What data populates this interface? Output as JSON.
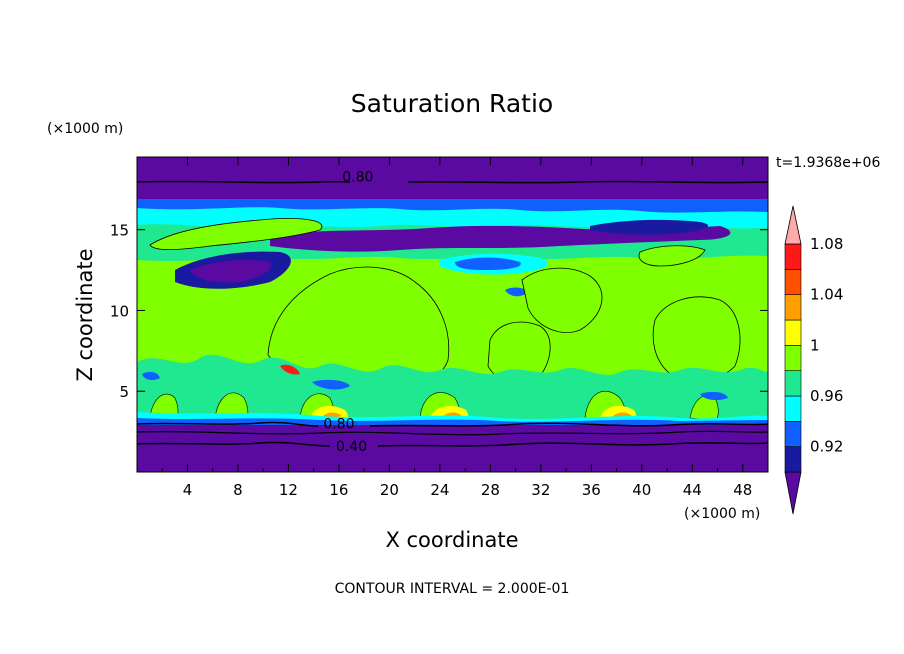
{
  "chart_data": {
    "type": "heatmap",
    "title": "Saturation Ratio",
    "xlabel": "X coordinate",
    "ylabel": "Z coordinate",
    "x_unit": "(×1000 m)",
    "y_unit": "(×1000 m)",
    "time_label": "t=1.9368e+06",
    "footer": "CONTOUR INTERVAL = 2.000E-01",
    "xlim": [
      0,
      50
    ],
    "ylim": [
      0,
      19.5
    ],
    "xticks": [
      4,
      8,
      12,
      16,
      20,
      24,
      28,
      32,
      36,
      40,
      44,
      48
    ],
    "yticks": [
      5,
      10,
      15
    ],
    "colorbar": {
      "levels": [
        0.92,
        0.96,
        1,
        1.04,
        1.08
      ],
      "tick_labels": [
        "0.92",
        "0.96",
        "1",
        "1.04",
        "1.08"
      ],
      "colors": [
        "#5a0aa0",
        "#1a1aa0",
        "#1060ff",
        "#00ffff",
        "#20e890",
        "#80ff00",
        "#ffff00",
        "#ffa000",
        "#ff5000",
        "#ff1818",
        "#ffaaaa"
      ]
    },
    "contour_labels": [
      {
        "text": "0.80",
        "x": 17.5,
        "z": 18.3
      },
      {
        "text": "0.80",
        "x": 16.0,
        "z": 3.0
      },
      {
        "text": "0.40",
        "x": 17.0,
        "z": 1.6
      }
    ]
  }
}
